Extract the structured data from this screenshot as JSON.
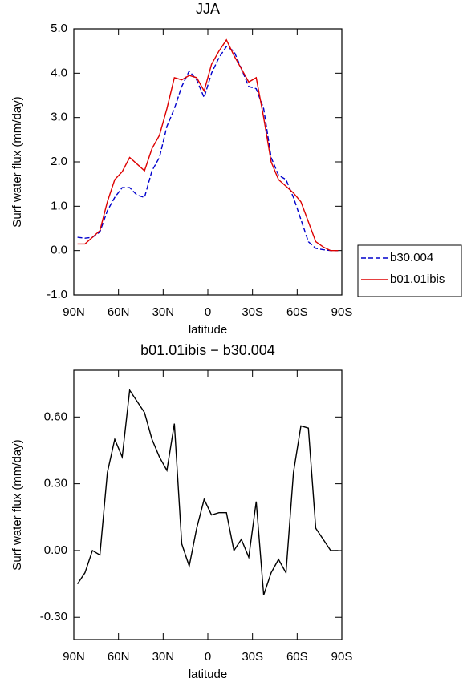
{
  "chart_data": [
    {
      "type": "line",
      "title": "JJA",
      "x_label": "latitude",
      "y_label": "Surf water flux (mm/day)",
      "x": [
        87.5,
        82.5,
        77.5,
        72.5,
        67.5,
        62.5,
        57.5,
        52.5,
        47.5,
        42.5,
        37.5,
        32.5,
        27.5,
        22.5,
        17.5,
        12.5,
        7.5,
        2.5,
        -2.5,
        -7.5,
        -12.5,
        -17.5,
        -22.5,
        -27.5,
        -32.5,
        -37.5,
        -42.5,
        -47.5,
        -52.5,
        -57.5,
        -62.5,
        -67.5,
        -72.5,
        -77.5,
        -82.5,
        -87.5
      ],
      "xlim": [
        90,
        -90
      ],
      "xticks": [
        {
          "value": 90,
          "label": "90N"
        },
        {
          "value": 60,
          "label": "60N"
        },
        {
          "value": 30,
          "label": "30N"
        },
        0,
        {
          "value": -30,
          "label": "30S"
        },
        {
          "value": -60,
          "label": "60S"
        },
        {
          "value": -90,
          "label": "90S"
        }
      ],
      "ylim": [
        -1,
        5
      ],
      "yticks": [
        {
          "value": -1,
          "label": "-1.0"
        },
        {
          "value": 0,
          "label": "0.0"
        },
        {
          "value": 1,
          "label": "1.0"
        },
        {
          "value": 2,
          "label": "2.0"
        },
        {
          "value": 3,
          "label": "3.0"
        },
        {
          "value": 4,
          "label": "4.0"
        },
        {
          "value": 5,
          "label": "5.0"
        }
      ],
      "legend": "right",
      "series": [
        {
          "name": "b30.004",
          "color": "#0000cc",
          "dashed": true,
          "values": [
            0.3,
            0.28,
            0.3,
            0.42,
            0.9,
            1.2,
            1.42,
            1.42,
            1.25,
            1.2,
            1.8,
            2.1,
            2.8,
            3.2,
            3.7,
            4.05,
            3.85,
            3.45,
            4.0,
            4.35,
            4.6,
            4.5,
            4.1,
            3.7,
            3.65,
            3.2,
            2.1,
            1.7,
            1.6,
            1.2,
            0.7,
            0.2,
            0.05,
            0.02,
            0.0,
            0.0
          ]
        },
        {
          "name": "b01.01ibis",
          "color": "#dd0000",
          "dashed": false,
          "values": [
            0.15,
            0.15,
            0.3,
            0.45,
            1.1,
            1.6,
            1.78,
            2.1,
            1.95,
            1.8,
            2.3,
            2.6,
            3.2,
            3.9,
            3.85,
            3.95,
            3.9,
            3.6,
            4.2,
            4.5,
            4.75,
            4.4,
            4.1,
            3.8,
            3.9,
            3.0,
            2.0,
            1.6,
            1.45,
            1.3,
            1.1,
            0.65,
            0.2,
            0.08,
            0.0,
            0.0
          ]
        }
      ]
    },
    {
      "type": "line",
      "title": "b01.01ibis − b30.004",
      "x_label": "latitude",
      "y_label": "Surf water flux (mm/day)",
      "x": [
        87.5,
        82.5,
        77.5,
        72.5,
        67.5,
        62.5,
        57.5,
        52.5,
        47.5,
        42.5,
        37.5,
        32.5,
        27.5,
        22.5,
        17.5,
        12.5,
        7.5,
        2.5,
        -2.5,
        -7.5,
        -12.5,
        -17.5,
        -22.5,
        -27.5,
        -32.5,
        -37.5,
        -42.5,
        -47.5,
        -52.5,
        -57.5,
        -62.5,
        -67.5,
        -72.5,
        -77.5,
        -82.5,
        -87.5
      ],
      "xlim": [
        90,
        -90
      ],
      "xticks": [
        {
          "value": 90,
          "label": "90N"
        },
        {
          "value": 60,
          "label": "60N"
        },
        {
          "value": 30,
          "label": "30N"
        },
        0,
        {
          "value": -30,
          "label": "30S"
        },
        {
          "value": -60,
          "label": "60S"
        },
        {
          "value": -90,
          "label": "90S"
        }
      ],
      "ylim": [
        -0.4,
        0.81
      ],
      "yticks": [
        {
          "value": -0.3,
          "label": "-0.30"
        },
        {
          "value": 0,
          "label": "0.00"
        },
        {
          "value": 0.3,
          "label": "0.30"
        },
        {
          "value": 0.6,
          "label": "0.60"
        }
      ],
      "series": [
        {
          "color": "#000000",
          "dashed": false,
          "values": [
            -0.15,
            -0.1,
            0.0,
            -0.02,
            0.35,
            0.5,
            0.42,
            0.72,
            0.67,
            0.62,
            0.5,
            0.42,
            0.36,
            0.57,
            0.03,
            -0.07,
            0.1,
            0.23,
            0.16,
            0.17,
            0.17,
            0.0,
            0.05,
            -0.03,
            0.22,
            -0.2,
            -0.1,
            -0.04,
            -0.1,
            0.35,
            0.56,
            0.55,
            0.1,
            0.05,
            0.0,
            0.0
          ]
        }
      ]
    }
  ]
}
